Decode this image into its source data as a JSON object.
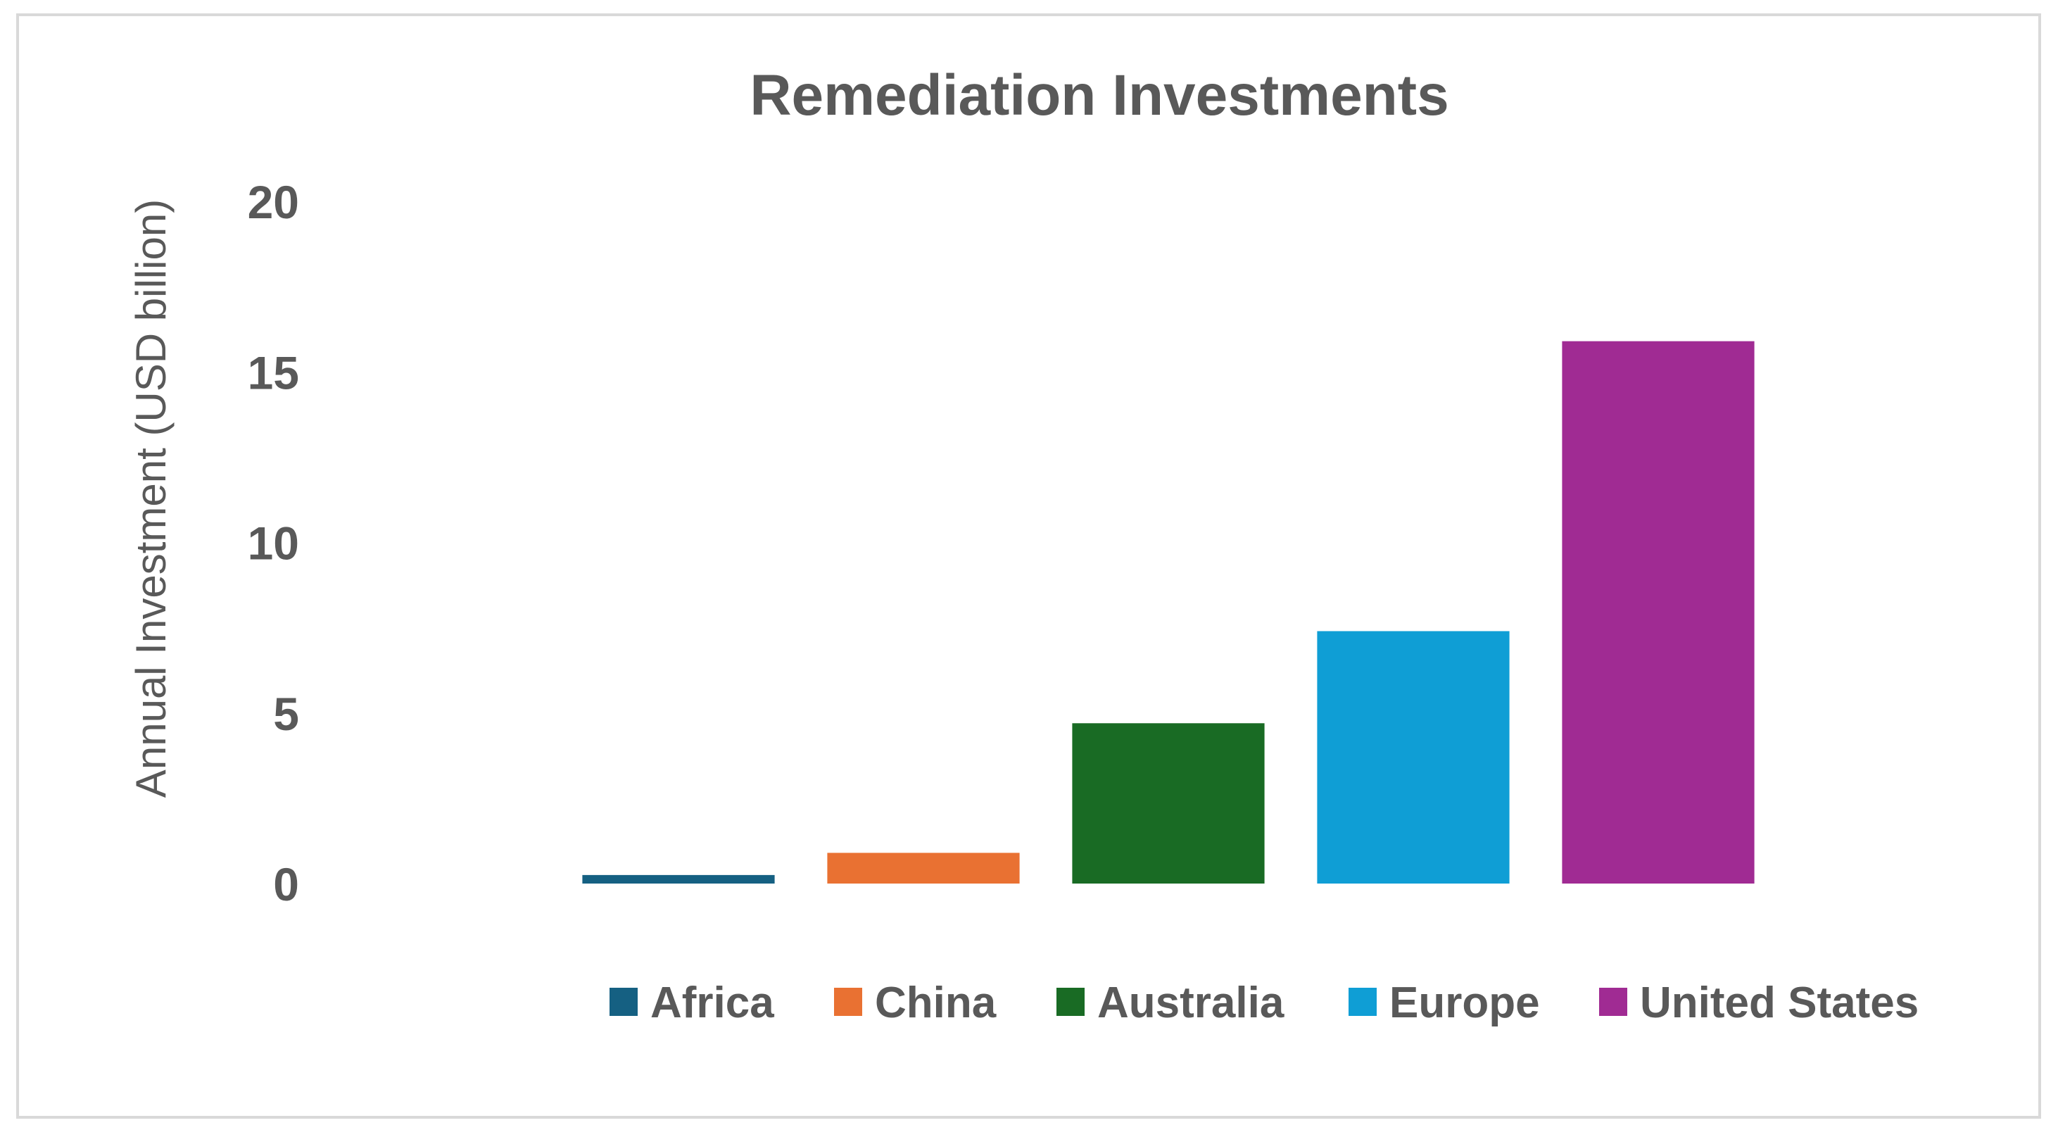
{
  "chart_data": {
    "type": "bar",
    "title": "Remediation Investments",
    "xlabel": "",
    "ylabel": "Annual Investment (USD billion)",
    "ylim": [
      0,
      20
    ],
    "yticks": [
      0,
      5,
      10,
      15,
      20
    ],
    "yticks_labels": [
      "0",
      "5",
      "10",
      "15",
      "20"
    ],
    "grid": false,
    "legend_position": "bottom",
    "categories": [
      ""
    ],
    "series": [
      {
        "name": "Africa",
        "values": [
          0.25
        ],
        "color": "#156082"
      },
      {
        "name": "China",
        "values": [
          0.9
        ],
        "color": "#E97132"
      },
      {
        "name": "Australia",
        "values": [
          4.7
        ],
        "color": "#196B24"
      },
      {
        "name": "Europe",
        "values": [
          7.4
        ],
        "color": "#0F9ED5"
      },
      {
        "name": "United States",
        "values": [
          15.9
        ],
        "color": "#A02B93"
      }
    ]
  }
}
